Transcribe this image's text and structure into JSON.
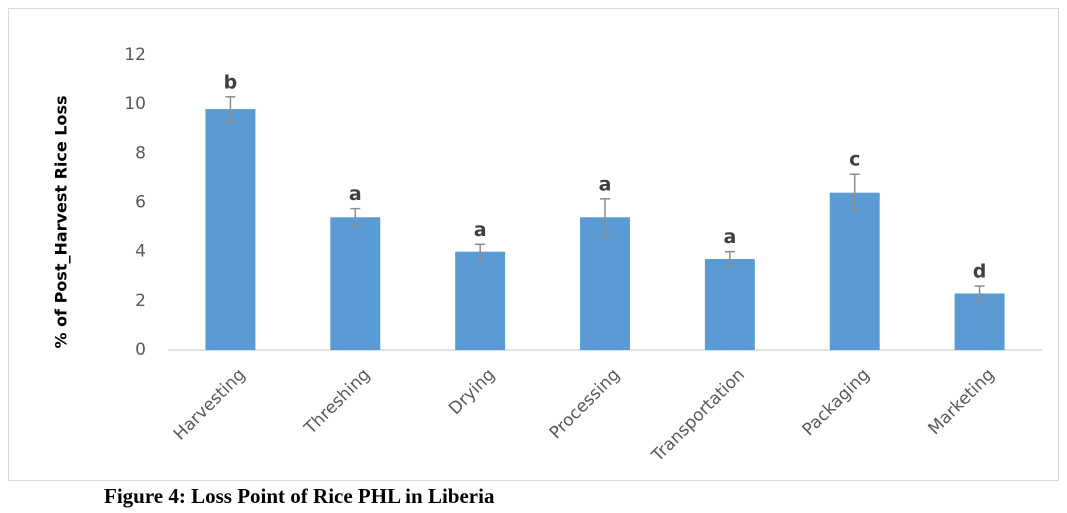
{
  "chart_data": {
    "type": "bar",
    "y_label": "% of Post_Harvest Rice Loss",
    "caption": "Figure 4: Loss Point of Rice PHL in Liberia",
    "categories": [
      "Harvesting",
      "Threshing",
      "Drying",
      "Processing",
      "Transportation",
      "Packaging",
      "Marketing"
    ],
    "values": [
      9.8,
      5.4,
      4.0,
      5.4,
      3.7,
      6.4,
      2.3
    ],
    "errors": [
      0.5,
      0.35,
      0.3,
      0.75,
      0.3,
      0.75,
      0.3
    ],
    "annotations": [
      "b",
      "a",
      "a",
      "a",
      "a",
      "c",
      "d"
    ],
    "color": "#5b9bd5",
    "error_color": "#8c8c8c",
    "ylim": [
      0,
      12
    ],
    "yticks": [
      0,
      2,
      4,
      6,
      8,
      10,
      12
    ],
    "grid": false
  }
}
